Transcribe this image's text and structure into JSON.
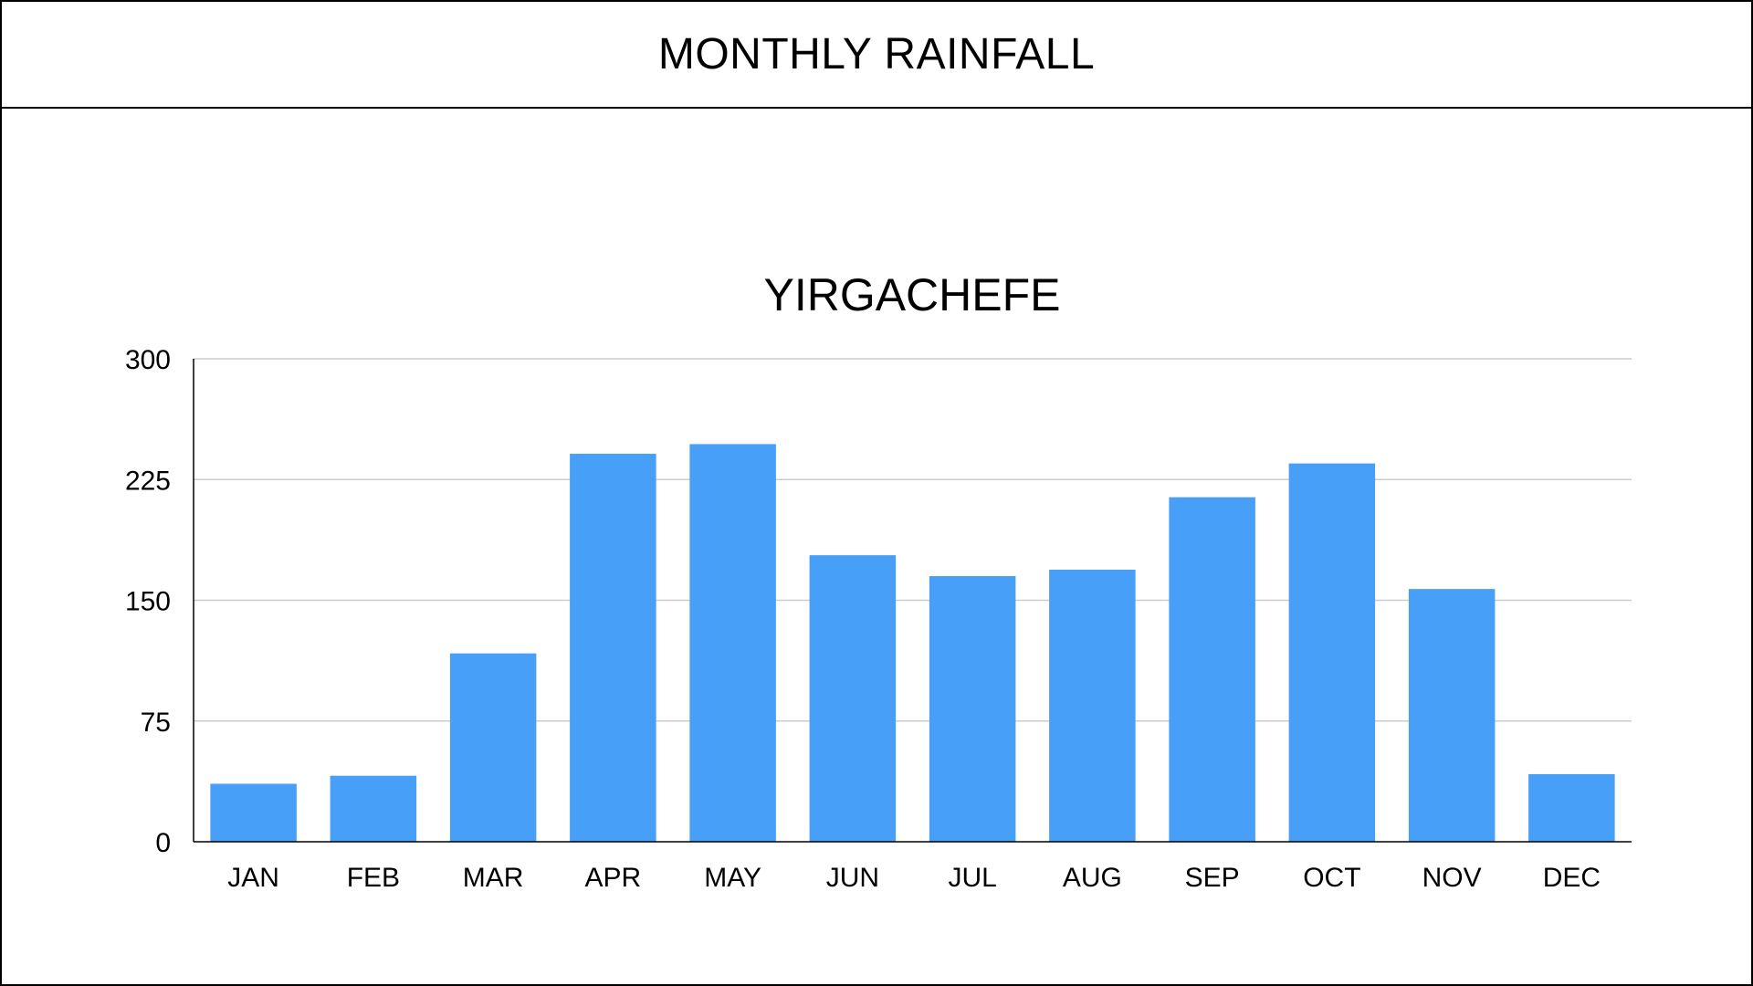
{
  "page": {
    "title": "MONTHLY RAINFALL"
  },
  "chart_data": {
    "type": "bar",
    "title": "YIRGACHEFE",
    "xlabel": "",
    "ylabel": "",
    "categories": [
      "JAN",
      "FEB",
      "MAR",
      "APR",
      "MAY",
      "JUN",
      "JUL",
      "AUG",
      "SEP",
      "OCT",
      "NOV",
      "DEC"
    ],
    "values": [
      36,
      41,
      117,
      241,
      247,
      178,
      165,
      169,
      214,
      235,
      157,
      42
    ],
    "ylim": [
      0,
      300
    ],
    "yticks": [
      "0",
      "75",
      "150",
      "225",
      "300"
    ],
    "grid": true,
    "legend": "none",
    "bar_color": "#489FF7",
    "grid_color": "#CCCCCC",
    "axis_color": "#000000"
  }
}
